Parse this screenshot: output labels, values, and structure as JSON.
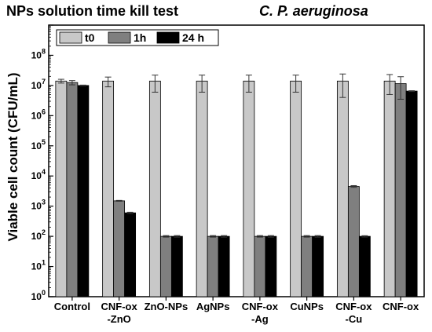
{
  "title_left": "NPs solution time kill test",
  "title_right": "C. P. aeruginosa",
  "colors": {
    "t0": "#c8c8c8",
    "1h": "#7f7f7f",
    "24h": "#000000",
    "axis": "#000000",
    "errorbar": "#333333"
  },
  "chart_data": {
    "type": "bar",
    "y_scale": "log",
    "ylim": [
      1,
      1000000000
    ],
    "ylabel": "Viable cell count (CFU/mL)",
    "xlabel": "",
    "ytick_labels": [
      "10^0",
      "10^1",
      "10^2",
      "10^3",
      "10^4",
      "10^5",
      "10^6",
      "10^7",
      "10^8"
    ],
    "legend_position": "top-left",
    "categories": [
      [
        "Control"
      ],
      [
        "CNF-ox",
        "-ZnO"
      ],
      [
        "ZnO-NPs"
      ],
      [
        "AgNPs"
      ],
      [
        "CNF-ox",
        "-Ag"
      ],
      [
        "CuNPs"
      ],
      [
        "CNF-ox",
        "-Cu"
      ],
      [
        "CNF-ox"
      ]
    ],
    "series": [
      {
        "name": "t0",
        "values": [
          14000000,
          14000000,
          14000000,
          14000000,
          14000000,
          14000000,
          14000000,
          14000000
        ],
        "errors": [
          2000000,
          5000000,
          8000000,
          8000000,
          8000000,
          8000000,
          10000000,
          9000000
        ]
      },
      {
        "name": "1h",
        "values": [
          12500000,
          1500,
          100,
          100,
          100,
          100,
          4500,
          11500000
        ],
        "errors": [
          2000000,
          50,
          6,
          6,
          6,
          6,
          300,
          8000000
        ]
      },
      {
        "name": "24 h",
        "values": [
          10000000,
          600,
          100,
          100,
          100,
          100,
          100,
          6500000
        ],
        "errors": [
          300000,
          30,
          6,
          6,
          6,
          6,
          5,
          200000
        ]
      }
    ]
  }
}
